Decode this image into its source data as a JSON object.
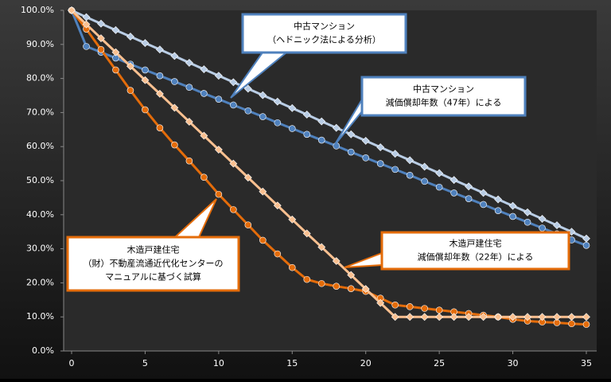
{
  "chart_data": {
    "type": "line",
    "x": [
      0,
      1,
      2,
      3,
      4,
      5,
      6,
      7,
      8,
      9,
      10,
      11,
      12,
      13,
      14,
      15,
      16,
      17,
      18,
      19,
      20,
      21,
      22,
      23,
      24,
      25,
      26,
      27,
      28,
      29,
      30,
      31,
      32,
      33,
      34,
      35
    ],
    "xlim": [
      0,
      35
    ],
    "xticks": [
      0,
      5,
      10,
      15,
      20,
      25,
      30,
      35
    ],
    "ylim": [
      0,
      100
    ],
    "yticks": [
      {
        "value": 0,
        "label": "0.0%"
      },
      {
        "value": 10,
        "label": "10.0%"
      },
      {
        "value": 20,
        "label": "20.0%"
      },
      {
        "value": 30,
        "label": "30.0%"
      },
      {
        "value": 40,
        "label": "40.0%"
      },
      {
        "value": 50,
        "label": "50.0%"
      },
      {
        "value": 60,
        "label": "60.0%"
      },
      {
        "value": 70,
        "label": "70.0%"
      },
      {
        "value": 80,
        "label": "80.0%"
      },
      {
        "value": 90,
        "label": "90.0%"
      },
      {
        "value": 100,
        "label": "100.0%"
      }
    ],
    "series": [
      {
        "color": "#b9cde5",
        "marker": "diamond",
        "values": [
          100,
          98,
          96.1,
          94.2,
          92.3,
          90.4,
          88.5,
          86.6,
          84.6,
          82.7,
          80.8,
          78.9,
          77,
          75.1,
          73.2,
          71.3,
          69.4,
          67.4,
          65.5,
          63.6,
          61.7,
          59.8,
          57.9,
          56,
          54.1,
          52.2,
          50.2,
          48.3,
          46.4,
          44.5,
          42.6,
          40.7,
          38.8,
          36.9,
          35,
          33
        ]
      },
      {
        "color": "#4f81bd",
        "marker": "circle",
        "values": [
          100,
          89.4,
          87.7,
          86,
          84.2,
          82.5,
          80.8,
          79.1,
          77.4,
          75.6,
          73.9,
          72.2,
          70.5,
          68.8,
          67,
          65.3,
          63.6,
          61.9,
          60.2,
          58.4,
          56.7,
          55,
          53.3,
          51.6,
          49.8,
          48.1,
          46.4,
          44.7,
          43,
          41.2,
          39.5,
          37.8,
          36.1,
          34.4,
          32.6,
          31
        ]
      },
      {
        "color": "#e46c0a",
        "marker": "circle",
        "values": [
          100,
          94.5,
          88.5,
          82.5,
          76.5,
          70.8,
          65.5,
          60.5,
          55.8,
          51,
          46,
          41.5,
          37,
          32.5,
          28.5,
          24.5,
          21,
          19.8,
          19,
          18.3,
          17.5,
          15.5,
          13.5,
          13,
          12.5,
          12,
          11.5,
          11,
          10.5,
          10,
          9.3,
          8.8,
          8.5,
          8.3,
          8,
          7.8
        ]
      },
      {
        "color": "#fac090",
        "marker": "diamond",
        "values": [
          100,
          95.9,
          91.8,
          87.7,
          83.6,
          79.5,
          75.5,
          71.4,
          67.3,
          63.2,
          59.1,
          55,
          50.9,
          46.8,
          42.7,
          38.6,
          34.5,
          30.5,
          26.4,
          22.3,
          18.2,
          14.1,
          10,
          10,
          10,
          10,
          10,
          10,
          10,
          10,
          10,
          10,
          10,
          10,
          10,
          10
        ]
      }
    ],
    "annotations": [
      {
        "lines": [
          "中古マンション",
          "（ヘドニック法による分析）"
        ],
        "color": "#4f81bd"
      },
      {
        "lines": [
          "中古マンション",
          "減価償却年数（47年）による"
        ],
        "color": "#4f81bd"
      },
      {
        "lines": [
          "木造戸建住宅",
          "（財）不動産流通近代化センターの",
          "マニュアルに基づく試算"
        ],
        "color": "#e46c0a"
      },
      {
        "lines": [
          "木造戸建住宅",
          "減価償却年数（22年）による"
        ],
        "color": "#e46c0a"
      }
    ]
  }
}
